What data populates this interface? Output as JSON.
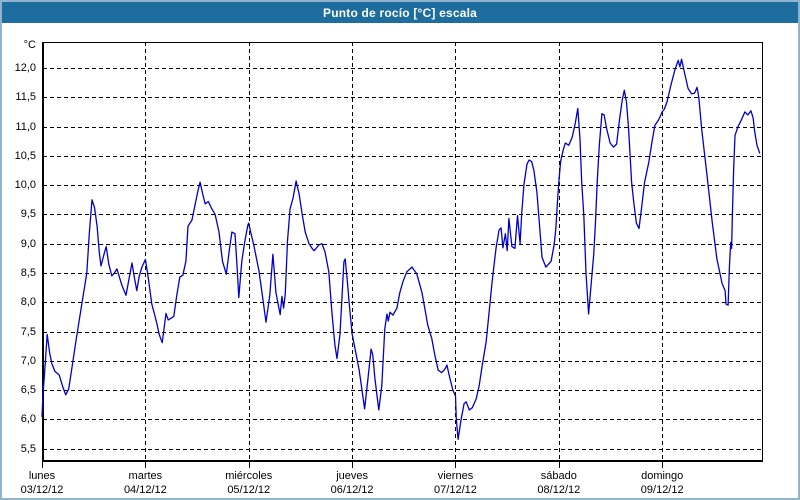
{
  "window": {
    "title": "Punto de rocío [°C] escala"
  },
  "colors": {
    "titlebar": "#1D6D9F",
    "frame": "#8FB4CC",
    "line": "#0000CC",
    "grid": "#000000",
    "background": "#FFFFFF",
    "text": "#000000"
  },
  "chart_data": {
    "type": "line",
    "title": "Punto de rocío [°C] escala",
    "legend": "none",
    "grid": "dashed",
    "y_axis": {
      "unit": "°C",
      "tick_values": [
        12.0,
        11.5,
        11.0,
        10.5,
        10.0,
        9.5,
        9.0,
        8.5,
        8.0,
        7.5,
        7.0,
        6.5,
        6.0,
        5.5
      ],
      "tick_labels": [
        "12,0",
        "11,5",
        "11,0",
        "10,5",
        "10,0",
        "9,5",
        "9,0",
        "8,5",
        "8,0",
        "7,5",
        "7,0",
        "6,5",
        "6,0",
        "5,5"
      ],
      "plot_value_at_top": 12.444,
      "plot_value_at_bottom": 5.273
    },
    "x_axis": {
      "plot_range_hours": [
        0,
        167.4
      ],
      "day_tick_hours": [
        0,
        24,
        48,
        72,
        96,
        120,
        144
      ],
      "days": [
        {
          "name": "lunes",
          "date": "03/12/12",
          "hour": 0
        },
        {
          "name": "martes",
          "date": "04/12/12",
          "hour": 24
        },
        {
          "name": "miércoles",
          "date": "05/12/12",
          "hour": 48
        },
        {
          "name": "jueves",
          "date": "06/12/12",
          "hour": 72
        },
        {
          "name": "viernes",
          "date": "07/12/12",
          "hour": 96
        },
        {
          "name": "sábado",
          "date": "08/12/12",
          "hour": 120
        },
        {
          "name": "domingo",
          "date": "09/12/12",
          "hour": 144
        }
      ]
    },
    "series": [
      {
        "name": "punto de rocío",
        "unit": "°C",
        "color": "#0000CC",
        "points_hour_value": [
          [
            0,
            6.05
          ],
          [
            0.2,
            6.4
          ],
          [
            0.7,
            6.9
          ],
          [
            1.2,
            7.45
          ],
          [
            1.8,
            7.12
          ],
          [
            2.3,
            6.95
          ],
          [
            3,
            6.82
          ],
          [
            4,
            6.76
          ],
          [
            4.8,
            6.56
          ],
          [
            5.5,
            6.42
          ],
          [
            6.2,
            6.52
          ],
          [
            7,
            6.9
          ],
          [
            8,
            7.4
          ],
          [
            9.3,
            8.0
          ],
          [
            10.4,
            8.5
          ],
          [
            11,
            9.2
          ],
          [
            11.6,
            9.75
          ],
          [
            12.2,
            9.62
          ],
          [
            12.8,
            9.3
          ],
          [
            13.3,
            8.85
          ],
          [
            13.7,
            8.62
          ],
          [
            14.4,
            8.82
          ],
          [
            14.9,
            8.95
          ],
          [
            15.5,
            8.65
          ],
          [
            16.2,
            8.45
          ],
          [
            16.8,
            8.5
          ],
          [
            17.4,
            8.57
          ],
          [
            18.5,
            8.3
          ],
          [
            19.5,
            8.12
          ],
          [
            20.2,
            8.4
          ],
          [
            20.9,
            8.67
          ],
          [
            21.5,
            8.4
          ],
          [
            22,
            8.2
          ],
          [
            22.6,
            8.45
          ],
          [
            23.2,
            8.6
          ],
          [
            24,
            8.73
          ],
          [
            24.6,
            8.45
          ],
          [
            25.5,
            7.97
          ],
          [
            26.7,
            7.63
          ],
          [
            27.2,
            7.45
          ],
          [
            27.9,
            7.31
          ],
          [
            28.8,
            7.81
          ],
          [
            29.3,
            7.7
          ],
          [
            30,
            7.73
          ],
          [
            30.6,
            7.76
          ],
          [
            31.3,
            8.12
          ],
          [
            32,
            8.43
          ],
          [
            32.7,
            8.46
          ],
          [
            33.4,
            8.7
          ],
          [
            33.9,
            9.3
          ],
          [
            34.8,
            9.4
          ],
          [
            35.5,
            9.65
          ],
          [
            36.2,
            9.9
          ],
          [
            36.7,
            10.05
          ],
          [
            37.3,
            9.85
          ],
          [
            37.9,
            9.68
          ],
          [
            38.6,
            9.72
          ],
          [
            39.4,
            9.6
          ],
          [
            40.2,
            9.5
          ],
          [
            41.1,
            9.2
          ],
          [
            41.9,
            8.7
          ],
          [
            42.8,
            8.48
          ],
          [
            43.5,
            8.9
          ],
          [
            44.1,
            9.2
          ],
          [
            44.8,
            9.17
          ],
          [
            45.3,
            8.6
          ],
          [
            45.7,
            8.08
          ],
          [
            46.4,
            8.7
          ],
          [
            47.1,
            9.05
          ],
          [
            47.8,
            9.32
          ],
          [
            48,
            9.35
          ],
          [
            48.6,
            9.15
          ],
          [
            49.2,
            8.97
          ],
          [
            50.4,
            8.52
          ],
          [
            51.2,
            8.1
          ],
          [
            52,
            7.66
          ],
          [
            52.9,
            8.12
          ],
          [
            53.6,
            8.82
          ],
          [
            54.3,
            8.17
          ],
          [
            55,
            7.9
          ],
          [
            55.3,
            7.79
          ],
          [
            55.7,
            8.1
          ],
          [
            56.1,
            7.9
          ],
          [
            56.5,
            8.15
          ],
          [
            57,
            9.05
          ],
          [
            57.6,
            9.6
          ],
          [
            58.3,
            9.78
          ],
          [
            59,
            10.07
          ],
          [
            59.7,
            9.85
          ],
          [
            60.4,
            9.51
          ],
          [
            61.1,
            9.2
          ],
          [
            62,
            9.0
          ],
          [
            62.7,
            8.92
          ],
          [
            63.2,
            8.88
          ],
          [
            64.3,
            8.98
          ],
          [
            65,
            9.0
          ],
          [
            65.7,
            8.86
          ],
          [
            66.6,
            8.52
          ],
          [
            67.3,
            7.83
          ],
          [
            68,
            7.27
          ],
          [
            68.5,
            7.04
          ],
          [
            69.2,
            7.46
          ],
          [
            70.1,
            8.69
          ],
          [
            70.4,
            8.74
          ],
          [
            70.9,
            8.35
          ],
          [
            71.3,
            8.0
          ],
          [
            72,
            7.46
          ],
          [
            72.7,
            7.2
          ],
          [
            73.6,
            6.86
          ],
          [
            74.3,
            6.5
          ],
          [
            74.9,
            6.18
          ],
          [
            75.7,
            6.7
          ],
          [
            76.4,
            7.2
          ],
          [
            76.8,
            7.1
          ],
          [
            77.3,
            6.7
          ],
          [
            78.2,
            6.16
          ],
          [
            78.9,
            6.58
          ],
          [
            79.6,
            7.55
          ],
          [
            80.1,
            7.8
          ],
          [
            80.4,
            7.68
          ],
          [
            80.8,
            7.83
          ],
          [
            81.5,
            7.78
          ],
          [
            82.4,
            7.9
          ],
          [
            83.1,
            8.17
          ],
          [
            83.8,
            8.35
          ],
          [
            84.7,
            8.52
          ],
          [
            85.9,
            8.6
          ],
          [
            87,
            8.49
          ],
          [
            88.2,
            8.17
          ],
          [
            89.6,
            7.6
          ],
          [
            90.5,
            7.38
          ],
          [
            91.2,
            7.1
          ],
          [
            92,
            6.84
          ],
          [
            92.8,
            6.8
          ],
          [
            93.5,
            6.85
          ],
          [
            94,
            6.93
          ],
          [
            94.7,
            6.7
          ],
          [
            95.4,
            6.5
          ],
          [
            96,
            6.4
          ],
          [
            96.2,
            6.0
          ],
          [
            96.6,
            5.66
          ],
          [
            97.3,
            6.0
          ],
          [
            98,
            6.27
          ],
          [
            98.5,
            6.3
          ],
          [
            99.2,
            6.16
          ],
          [
            99.9,
            6.2
          ],
          [
            100.8,
            6.35
          ],
          [
            101.5,
            6.58
          ],
          [
            102.2,
            6.92
          ],
          [
            103.1,
            7.32
          ],
          [
            103.8,
            7.83
          ],
          [
            104.5,
            8.35
          ],
          [
            105.4,
            8.92
          ],
          [
            106.1,
            9.23
          ],
          [
            106.6,
            9.27
          ],
          [
            107,
            8.93
          ],
          [
            107.6,
            9.17
          ],
          [
            108,
            8.88
          ],
          [
            108.4,
            9.43
          ],
          [
            109.1,
            8.95
          ],
          [
            109.8,
            8.92
          ],
          [
            110.4,
            9.48
          ],
          [
            111,
            9.0
          ],
          [
            111.4,
            9.54
          ],
          [
            111.9,
            10.02
          ],
          [
            112.6,
            10.36
          ],
          [
            113.1,
            10.43
          ],
          [
            113.7,
            10.4
          ],
          [
            114.2,
            10.25
          ],
          [
            114.9,
            9.88
          ],
          [
            115.4,
            9.43
          ],
          [
            116.1,
            8.77
          ],
          [
            117,
            8.6
          ],
          [
            118.2,
            8.7
          ],
          [
            118.9,
            8.98
          ],
          [
            119.3,
            9.25
          ],
          [
            119.7,
            9.75
          ],
          [
            120,
            10.05
          ],
          [
            120.4,
            10.4
          ],
          [
            121,
            10.6
          ],
          [
            121.5,
            10.72
          ],
          [
            122.3,
            10.68
          ],
          [
            123.1,
            10.82
          ],
          [
            123.8,
            11.05
          ],
          [
            124.4,
            11.31
          ],
          [
            124.9,
            10.79
          ],
          [
            125.3,
            10.05
          ],
          [
            125.8,
            9.49
          ],
          [
            126.3,
            8.5
          ],
          [
            126.9,
            7.8
          ],
          [
            127.5,
            8.3
          ],
          [
            128.1,
            8.81
          ],
          [
            128.5,
            9.37
          ],
          [
            128.9,
            10.05
          ],
          [
            129.4,
            10.68
          ],
          [
            130,
            11.22
          ],
          [
            130.5,
            11.2
          ],
          [
            131.1,
            10.96
          ],
          [
            131.9,
            10.72
          ],
          [
            132.7,
            10.65
          ],
          [
            133.4,
            10.7
          ],
          [
            134.1,
            11.13
          ],
          [
            134.7,
            11.45
          ],
          [
            135.2,
            11.62
          ],
          [
            135.7,
            11.42
          ],
          [
            136.2,
            10.96
          ],
          [
            136.9,
            10.05
          ],
          [
            137.4,
            9.7
          ],
          [
            138,
            9.35
          ],
          [
            138.6,
            9.26
          ],
          [
            139.2,
            9.6
          ],
          [
            139.9,
            10.05
          ],
          [
            140.9,
            10.4
          ],
          [
            141.6,
            10.73
          ],
          [
            142.3,
            11.02
          ],
          [
            143.2,
            11.12
          ],
          [
            144,
            11.25
          ],
          [
            144.5,
            11.3
          ],
          [
            145.1,
            11.42
          ],
          [
            146,
            11.7
          ],
          [
            147,
            11.98
          ],
          [
            147.7,
            12.13
          ],
          [
            148.1,
            12.02
          ],
          [
            148.5,
            12.15
          ],
          [
            149.3,
            11.88
          ],
          [
            150,
            11.65
          ],
          [
            150.8,
            11.56
          ],
          [
            151.5,
            11.57
          ],
          [
            152.1,
            11.67
          ],
          [
            152.5,
            11.5
          ],
          [
            153.2,
            10.94
          ],
          [
            154.4,
            10.17
          ],
          [
            155.6,
            9.37
          ],
          [
            156.7,
            8.74
          ],
          [
            157.9,
            8.32
          ],
          [
            158.6,
            8.2
          ],
          [
            158.8,
            7.97
          ],
          [
            159.3,
            7.95
          ],
          [
            159.6,
            8.6
          ],
          [
            159.9,
            9.02
          ],
          [
            160.1,
            8.92
          ],
          [
            160.3,
            9.5
          ],
          [
            160.6,
            10.3
          ],
          [
            160.9,
            10.85
          ],
          [
            161.6,
            11.0
          ],
          [
            162.3,
            11.1
          ],
          [
            163.2,
            11.25
          ],
          [
            163.9,
            11.2
          ],
          [
            164.6,
            11.27
          ],
          [
            165.1,
            11.15
          ],
          [
            165.5,
            10.9
          ],
          [
            166,
            10.68
          ],
          [
            166.6,
            10.55
          ]
        ]
      }
    ]
  }
}
